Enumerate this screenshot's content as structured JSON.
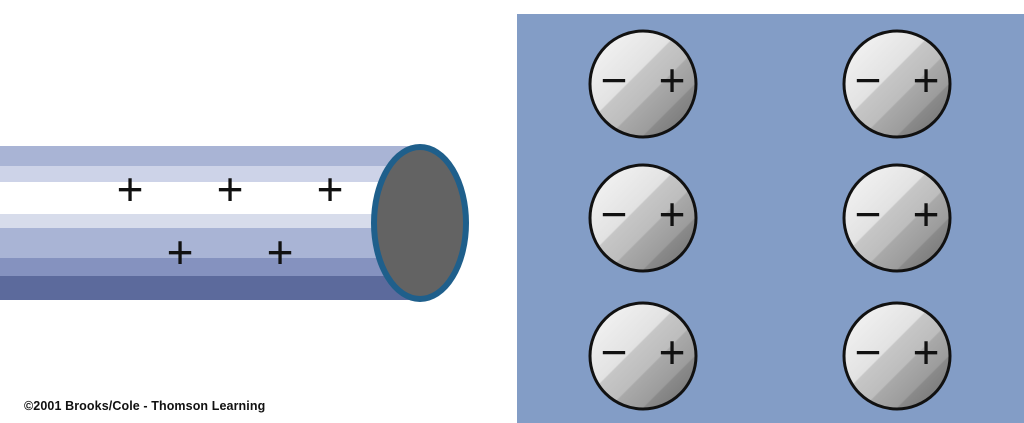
{
  "rod": {
    "charges": [
      "+",
      "+",
      "+",
      "+",
      "+"
    ]
  },
  "panel": {
    "color": "#839dc6",
    "molecules": [
      {
        "negative": "−",
        "positive": "+"
      },
      {
        "negative": "−",
        "positive": "+"
      },
      {
        "negative": "−",
        "positive": "+"
      },
      {
        "negative": "−",
        "positive": "+"
      },
      {
        "negative": "−",
        "positive": "+"
      },
      {
        "negative": "−",
        "positive": "+"
      }
    ]
  },
  "credit": "©2001 Brooks/Cole - Thomson Learning"
}
